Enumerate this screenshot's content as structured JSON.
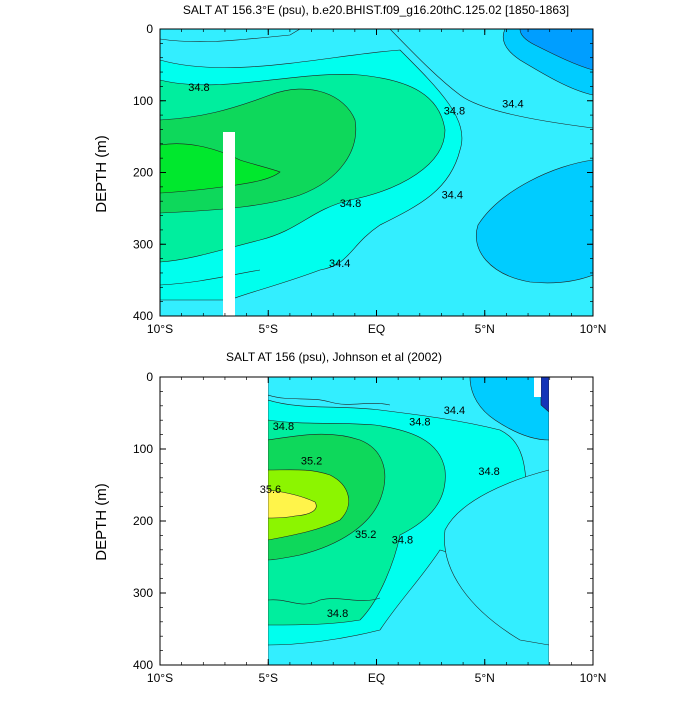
{
  "chart_data": [
    {
      "type": "contour",
      "title": "SALT AT 156.3°E (psu), b.e20.BHIST.f09_g16.20thC.125.02 [1850-1863]",
      "ylabel": "DEPTH (m)",
      "xlim": [
        -10,
        10
      ],
      "ylim": [
        400,
        0
      ],
      "x_ticks": [
        {
          "value": -10,
          "label": "10°S"
        },
        {
          "value": -5,
          "label": "5°S"
        },
        {
          "value": 0,
          "label": "EQ"
        },
        {
          "value": 5,
          "label": "5°N"
        },
        {
          "value": 10,
          "label": "10°N"
        }
      ],
      "y_ticks": [
        0,
        100,
        200,
        300,
        400
      ],
      "contour_labels": [
        {
          "text": "34.8",
          "x": -8.2,
          "y": 85
        },
        {
          "text": "34.8",
          "x": 3.6,
          "y": 118
        },
        {
          "text": "34.4",
          "x": 6.3,
          "y": 108
        },
        {
          "text": "34.8",
          "x": -1.2,
          "y": 247
        },
        {
          "text": "34.4",
          "x": 3.5,
          "y": 235
        },
        {
          "text": "34.4",
          "x": -1.7,
          "y": 330
        }
      ],
      "colors": {
        "land_mask": "#ffffff",
        "cyan_light": "#33eeff",
        "aqua": "#00ffee",
        "teal_green": "#00ee9e",
        "green": "#0ed85b",
        "bright_green": "#00e82d",
        "blue_med": "#00ccff",
        "blue_deep": "#009eff"
      }
    },
    {
      "type": "contour",
      "title": "SALT AT 156 (psu), Johnson et al (2002)",
      "ylabel": "DEPTH (m)",
      "xlim": [
        -10,
        10
      ],
      "ylim": [
        400,
        0
      ],
      "x_ticks": [
        {
          "value": -10,
          "label": "10°S"
        },
        {
          "value": -5,
          "label": "5°S"
        },
        {
          "value": 0,
          "label": "EQ"
        },
        {
          "value": 5,
          "label": "5°N"
        },
        {
          "value": 10,
          "label": "10°N"
        }
      ],
      "y_ticks": [
        0,
        100,
        200,
        300,
        400
      ],
      "contour_labels": [
        {
          "text": "34.8",
          "x": -4.3,
          "y": 72
        },
        {
          "text": "34.4",
          "x": 3.6,
          "y": 50
        },
        {
          "text": "34.8",
          "x": 2.0,
          "y": 66
        },
        {
          "text": "35.2",
          "x": -3.0,
          "y": 120
        },
        {
          "text": "35.6",
          "x": -4.9,
          "y": 160
        },
        {
          "text": "34.8",
          "x": 5.2,
          "y": 135
        },
        {
          "text": "35.2",
          "x": -0.5,
          "y": 222
        },
        {
          "text": "34.8",
          "x": 1.2,
          "y": 230
        },
        {
          "text": "34.8",
          "x": -1.8,
          "y": 332
        }
      ],
      "data_extent": {
        "x": [
          -5,
          8
        ],
        "y": [
          0,
          400
        ]
      },
      "colors": {
        "cyan_light": "#33eeff",
        "aqua": "#00ffee",
        "teal_green": "#00ee9e",
        "green": "#0ed85b",
        "lime": "#8cf500",
        "yellow": "#fff44a",
        "blue_med": "#00ccff",
        "navy": "#1434b8"
      }
    }
  ]
}
